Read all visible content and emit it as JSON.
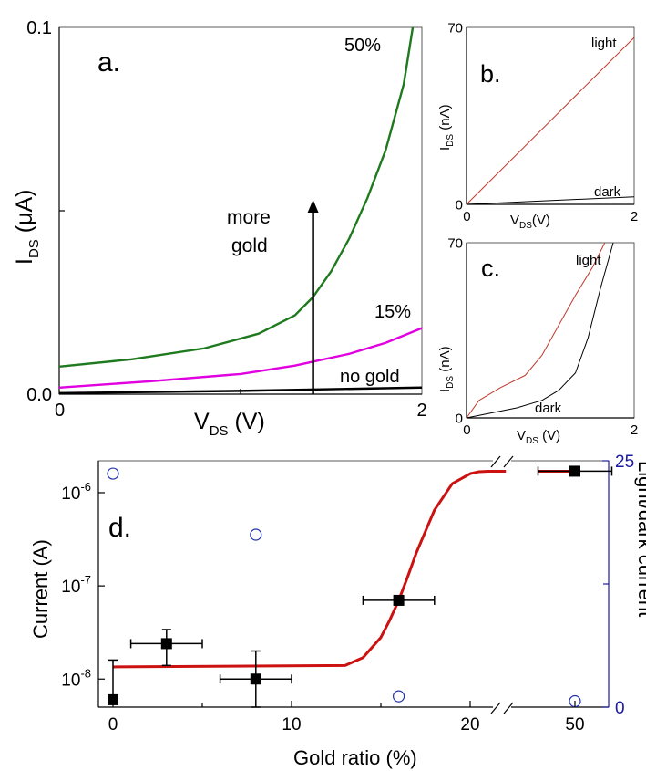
{
  "chart_data": [
    {
      "id": "a",
      "type": "line",
      "panel_label": "a.",
      "xlabel": "V",
      "xlabel_sub": "DS",
      "xlabel_unit": " (V)",
      "ylabel": "I",
      "ylabel_sub": "DS",
      "ylabel_unit": " (μA)",
      "xlim": [
        0,
        2
      ],
      "ylim": [
        0,
        0.1
      ],
      "xticks": [
        {
          "v": 0,
          "label": "0"
        },
        {
          "v": 2,
          "label": "2"
        }
      ],
      "yticks": [
        {
          "v": 0,
          "label": "0.0"
        },
        {
          "v": 0.1,
          "label": "0.1"
        }
      ],
      "annotation": [
        "more",
        "gold"
      ],
      "arrow": {
        "x": 1.4,
        "y_from": 0,
        "y_to": 0.053
      },
      "series": [
        {
          "name": "50%",
          "color": "#1f7a1f",
          "x": [
            0,
            0.4,
            0.8,
            1.1,
            1.3,
            1.4,
            1.5,
            1.6,
            1.7,
            1.8,
            1.9,
            1.95
          ],
          "y": [
            0.0075,
            0.0095,
            0.0125,
            0.0165,
            0.0215,
            0.0265,
            0.0335,
            0.0425,
            0.0535,
            0.0665,
            0.0845,
            0.1
          ]
        },
        {
          "name": "15%",
          "color": "#e000e0",
          "x": [
            0,
            0.5,
            1.0,
            1.3,
            1.6,
            1.8,
            2.0
          ],
          "y": [
            0.0018,
            0.0035,
            0.0055,
            0.0078,
            0.011,
            0.014,
            0.018
          ]
        },
        {
          "name": "no gold",
          "color": "#000000",
          "x": [
            0,
            1.0,
            2.0
          ],
          "y": [
            0.0003,
            0.0009,
            0.0018
          ]
        }
      ]
    },
    {
      "id": "b",
      "type": "line",
      "panel_label": "b.",
      "xlabel": "V",
      "xlabel_sub": "DS",
      "xlabel_unit": "(V)",
      "ylabel": "I",
      "ylabel_sub": "DS",
      "ylabel_unit": " (nA)",
      "xlim": [
        0,
        2
      ],
      "ylim": [
        0,
        70
      ],
      "xticks": [
        {
          "v": 0,
          "label": "0"
        },
        {
          "v": 2,
          "label": "2"
        }
      ],
      "yticks": [
        {
          "v": 0,
          "label": "0"
        },
        {
          "v": 70,
          "label": "70"
        }
      ],
      "series": [
        {
          "name": "light",
          "color": "#c0392b",
          "x": [
            0,
            2
          ],
          "y": [
            0,
            66
          ]
        },
        {
          "name": "dark",
          "color": "#000000",
          "x": [
            0,
            2
          ],
          "y": [
            0,
            3
          ]
        }
      ]
    },
    {
      "id": "c",
      "type": "line",
      "panel_label": "c.",
      "xlabel": "V",
      "xlabel_sub": "DS",
      "xlabel_unit": " (V)",
      "ylabel": "I",
      "ylabel_sub": "DS",
      "ylabel_unit": " (nA)",
      "xlim": [
        0,
        2
      ],
      "ylim": [
        0,
        70
      ],
      "xticks": [
        {
          "v": 0,
          "label": "0"
        },
        {
          "v": 2,
          "label": "2"
        }
      ],
      "yticks": [
        {
          "v": 0,
          "label": "0"
        },
        {
          "v": 70,
          "label": "70"
        }
      ],
      "series": [
        {
          "name": "light",
          "color": "#c0392b",
          "x": [
            0,
            0.15,
            0.4,
            0.7,
            0.9,
            1.1,
            1.3,
            1.5,
            1.65
          ],
          "y": [
            0,
            7,
            12,
            17,
            25,
            37,
            49,
            60,
            70
          ]
        },
        {
          "name": "dark",
          "color": "#000000",
          "x": [
            0,
            0.3,
            0.6,
            0.9,
            1.1,
            1.3,
            1.45,
            1.6,
            1.75
          ],
          "y": [
            0,
            2,
            4,
            7,
            11,
            18,
            32,
            52,
            70
          ]
        }
      ]
    },
    {
      "id": "d",
      "type": "scatter",
      "panel_label": "d.",
      "xlabel": "Gold ratio (%)",
      "ylabel": "Current (A)",
      "y2label": "Light/dark current",
      "yscale": "log",
      "ylim": [
        5e-09,
        2.2e-06
      ],
      "y2lim": [
        0,
        25
      ],
      "xticks": [
        {
          "v": 0,
          "label": "0"
        },
        {
          "v": 10,
          "label": "10"
        },
        {
          "v": 20,
          "label": "20"
        },
        {
          "v": 50,
          "label": "50"
        }
      ],
      "yticks": [
        {
          "v": 1e-08,
          "base": "10",
          "exp": "-8"
        },
        {
          "v": 1e-07,
          "base": "10",
          "exp": "-7"
        },
        {
          "v": 1e-06,
          "base": "10",
          "exp": "-6"
        }
      ],
      "y2ticks": [
        {
          "v": 0,
          "label": "0"
        },
        {
          "v": 25,
          "label": "25"
        }
      ],
      "axis_break": [
        22,
        48
      ],
      "current": [
        {
          "x": 0,
          "y": 6e-09,
          "yerr_high": 1.6e-08
        },
        {
          "x": 3,
          "y": 2.4e-08,
          "xerr": 2,
          "yerr_low": 1.4e-08,
          "yerr_high": 3.4e-08
        },
        {
          "x": 8,
          "y": 1e-08,
          "xerr": 2,
          "yerr_low": 5e-09,
          "yerr_high": 2e-08
        },
        {
          "x": 16,
          "y": 7e-08,
          "xerr": 2
        },
        {
          "x": 50,
          "y": 1.7e-06,
          "xerr": 1
        }
      ],
      "ratio": [
        {
          "x": 0,
          "y": 23.7
        },
        {
          "x": 8,
          "y": 17.5
        },
        {
          "x": 16,
          "y": 1.1
        },
        {
          "x": 50,
          "y": 0.6
        }
      ],
      "fit": {
        "color": "#cc1111",
        "x": [
          0,
          13,
          14,
          15,
          15.5,
          16,
          16.5,
          17,
          18,
          19,
          20,
          20.5,
          21,
          22,
          49,
          50
        ],
        "y": [
          1.35e-08,
          1.4e-08,
          1.7e-08,
          2.8e-08,
          4.3e-08,
          7e-08,
          1.25e-07,
          2.3e-07,
          6.5e-07,
          1.25e-06,
          1.6e-06,
          1.68e-06,
          1.7e-06,
          1.7e-06,
          1.7e-06,
          1.7e-06
        ]
      },
      "colors": {
        "current": "#000000",
        "ratio": "#2233aa",
        "right_axis": "#1a1aa0"
      }
    }
  ]
}
